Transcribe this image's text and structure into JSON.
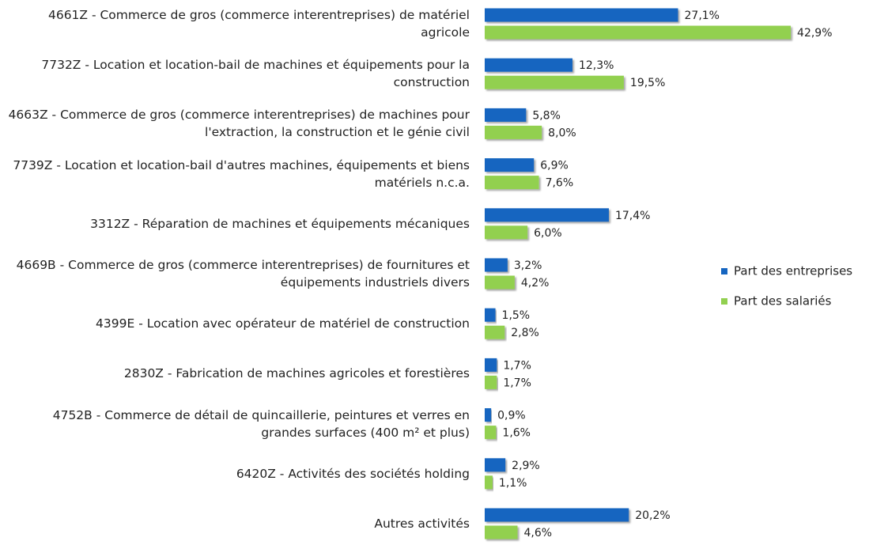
{
  "chart_data": {
    "type": "bar",
    "orientation": "horizontal",
    "categories": [
      "4661Z - Commerce de gros (commerce interentreprises) de matériel agricole",
      "7732Z - Location et location-bail de machines et équipements pour la construction",
      "4663Z - Commerce de gros (commerce interentreprises) de machines pour l'extraction, la construction et le génie civil",
      "7739Z - Location et location-bail d'autres machines, équipements et biens matériels n.c.a.",
      "3312Z - Réparation de machines et équipements mécaniques",
      "4669B - Commerce de gros (commerce interentreprises) de fournitures et équipements industriels divers",
      "4399E - Location avec opérateur de matériel de construction",
      "2830Z - Fabrication de machines agricoles et forestières",
      "4752B - Commerce de détail de quincaillerie, peintures et verres en grandes surfaces (400 m² et plus)",
      "6420Z - Activités des sociétés holding",
      "Autres activités"
    ],
    "series": [
      {
        "name": "Part des entreprises",
        "color": "#1565c0",
        "values": [
          27.1,
          12.3,
          5.8,
          6.9,
          17.4,
          3.2,
          1.5,
          1.7,
          0.9,
          2.9,
          20.2
        ],
        "value_labels": [
          "27,1%",
          "12,3%",
          "5,8%",
          "6,9%",
          "17,4%",
          "3,2%",
          "1,5%",
          "1,7%",
          "0,9%",
          "2,9%",
          "20,2%"
        ]
      },
      {
        "name": "Part des salariés",
        "color": "#92d050",
        "values": [
          42.9,
          19.5,
          8.0,
          7.6,
          6.0,
          4.2,
          2.8,
          1.7,
          1.6,
          1.1,
          4.6
        ],
        "value_labels": [
          "42,9%",
          "19,5%",
          "8,0%",
          "7,6%",
          "6,0%",
          "4,2%",
          "2,8%",
          "1,7%",
          "1,6%",
          "1,1%",
          "4,6%"
        ]
      }
    ],
    "xlim": [
      0,
      45
    ],
    "legend": "right"
  }
}
